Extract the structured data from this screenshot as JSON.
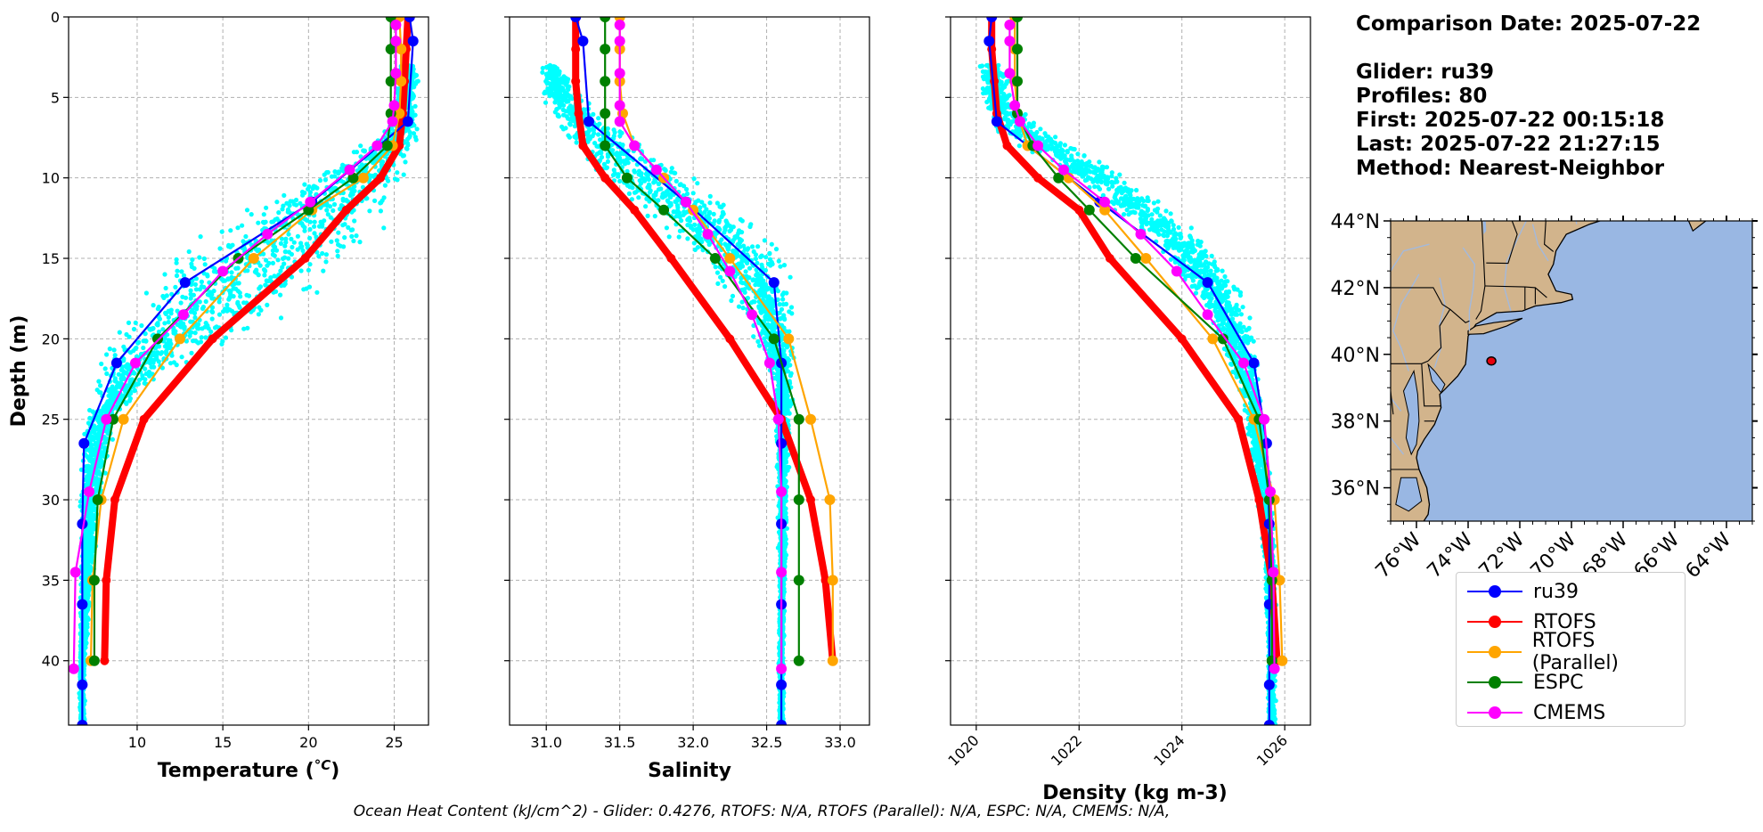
{
  "info": {
    "comparison_date": "Comparison Date: 2025-07-22",
    "glider": "Glider: ru39",
    "profiles": "Profiles: 80",
    "first": "First: 2025-07-22 00:15:18",
    "last": "Last: 2025-07-22 21:27:15",
    "method": "Method: Nearest-Neighbor"
  },
  "footer": "Ocean Heat Content (kJ/cm^2) - Glider: 0.4276,  RTOFS: N/A,  RTOFS (Parallel): N/A,  ESPC: N/A,  CMEMS: N/A,",
  "colors": {
    "ru39": "#0000ff",
    "RTOFS": "#ff0000",
    "RTOFS (Parallel)": "#ffa500",
    "ESPC": "#008000",
    "CMEMS": "#ff00ff",
    "scatter": "#00ffff",
    "land": "#d2b48c",
    "ocean": "#99b7e3"
  },
  "legend": [
    {
      "name": "ru39",
      "color": "#0000ff"
    },
    {
      "name": "RTOFS",
      "color": "#ff0000"
    },
    {
      "name": "RTOFS (Parallel)",
      "color": "#ffa500"
    },
    {
      "name": "ESPC",
      "color": "#008000"
    },
    {
      "name": "CMEMS",
      "color": "#ff00ff"
    }
  ],
  "chart_data": [
    {
      "type": "line",
      "xlabel": "Temperature (°C)",
      "ylabel": "Depth (m)",
      "xlim": [
        6,
        27
      ],
      "ylim": [
        44,
        0
      ],
      "xticks": [
        10,
        15,
        20,
        25
      ],
      "yticks": [
        0,
        5,
        10,
        15,
        20,
        25,
        30,
        35,
        40
      ],
      "grid": true,
      "scatter_envelope": {
        "name": "glider profiles",
        "depth": [
          3,
          5,
          7,
          9,
          11,
          13,
          15,
          17,
          19,
          21,
          23,
          25,
          30,
          35,
          40,
          44
        ],
        "min": [
          25.2,
          24.7,
          24.3,
          21,
          17,
          13.5,
          10.5,
          9,
          8.2,
          7.5,
          7,
          6.7,
          6.6,
          6.6,
          6.6,
          6.6
        ],
        "max": [
          26.5,
          26.6,
          26.6,
          26.5,
          26.4,
          25.8,
          23.5,
          21.5,
          18.5,
          14,
          11,
          9,
          8,
          7.5,
          7,
          7
        ]
      },
      "series": [
        {
          "name": "ru39",
          "depth": [
            0,
            1.5,
            6.5,
            11.5,
            16.5,
            21.5,
            26.5,
            31.5,
            36.5,
            41.5,
            44
          ],
          "values": [
            25.9,
            26.1,
            25.8,
            20.2,
            12.8,
            8.8,
            6.9,
            6.8,
            6.8,
            6.8,
            6.8
          ]
        },
        {
          "name": "RTOFS",
          "depth": [
            0,
            2,
            4,
            6,
            8,
            10,
            12,
            15,
            20,
            25,
            30,
            35,
            40
          ],
          "values": [
            25.8,
            25.7,
            25.6,
            25.5,
            25.3,
            24.2,
            22.2,
            19.8,
            14.4,
            10.4,
            8.7,
            8.2,
            8.1
          ]
        },
        {
          "name": "RTOFS (Parallel)",
          "depth": [
            0,
            2,
            4,
            6,
            8,
            10,
            12,
            15,
            20,
            25,
            30,
            35,
            40
          ],
          "values": [
            25.3,
            25.4,
            25.4,
            25.3,
            24.9,
            23.2,
            20.2,
            16.8,
            12.5,
            9.2,
            7.9,
            7.4,
            7.3
          ]
        },
        {
          "name": "ESPC",
          "depth": [
            0,
            2,
            4,
            6,
            8,
            10,
            12,
            15,
            20,
            25,
            30,
            35,
            40
          ],
          "values": [
            24.8,
            24.8,
            24.8,
            24.8,
            24.6,
            22.6,
            20.0,
            15.9,
            11.2,
            8.6,
            7.7,
            7.5,
            7.5
          ]
        },
        {
          "name": "CMEMS",
          "depth": [
            0.5,
            1.5,
            3.5,
            5.5,
            6.5,
            8,
            9.5,
            11.5,
            13.5,
            15.8,
            18.5,
            21.5,
            25,
            29.5,
            34.5,
            40.5
          ],
          "values": [
            25.1,
            25.1,
            25.1,
            25.0,
            24.9,
            24.0,
            22.4,
            20.1,
            17.6,
            15.0,
            12.7,
            9.9,
            8.2,
            7.2,
            6.4,
            6.3
          ]
        }
      ]
    },
    {
      "type": "line",
      "xlabel": "Salinity",
      "xlim": [
        30.75,
        33.2
      ],
      "ylim": [
        44,
        0
      ],
      "xticks": [
        31.0,
        31.5,
        32.0,
        32.5,
        33.0
      ],
      "grid": true,
      "scatter_envelope": {
        "name": "glider profiles",
        "depth": [
          3,
          5,
          7,
          9,
          11,
          13,
          15,
          17,
          19,
          21,
          23,
          25,
          30,
          35,
          40,
          44
        ],
        "min": [
          30.95,
          30.95,
          31.05,
          31.2,
          31.4,
          31.7,
          31.95,
          32.15,
          32.35,
          32.45,
          32.52,
          32.55,
          32.57,
          32.58,
          32.58,
          32.58
        ],
        "max": [
          31.1,
          31.25,
          31.55,
          31.9,
          32.2,
          32.5,
          32.7,
          32.72,
          32.72,
          32.72,
          32.7,
          32.68,
          32.65,
          32.63,
          32.62,
          32.62
        ]
      },
      "series": [
        {
          "name": "ru39",
          "depth": [
            0,
            1.5,
            6.5,
            11.5,
            16.5,
            21.5,
            26.5,
            31.5,
            36.5,
            41.5,
            44
          ],
          "values": [
            31.2,
            31.25,
            31.29,
            31.95,
            32.55,
            32.6,
            32.6,
            32.6,
            32.6,
            32.6,
            32.6
          ]
        },
        {
          "name": "RTOFS",
          "depth": [
            0,
            2,
            4,
            6,
            8,
            10,
            12,
            15,
            20,
            25,
            30,
            35,
            40
          ],
          "values": [
            31.2,
            31.2,
            31.2,
            31.22,
            31.25,
            31.4,
            31.6,
            31.85,
            32.25,
            32.6,
            32.8,
            32.9,
            32.95
          ]
        },
        {
          "name": "RTOFS (Parallel)",
          "depth": [
            0,
            2,
            4,
            6,
            8,
            10,
            12,
            15,
            20,
            25,
            30,
            35,
            40
          ],
          "values": [
            31.5,
            31.5,
            31.5,
            31.52,
            31.6,
            31.8,
            32.0,
            32.25,
            32.65,
            32.8,
            32.93,
            32.95,
            32.95
          ]
        },
        {
          "name": "ESPC",
          "depth": [
            0,
            2,
            4,
            6,
            8,
            10,
            12,
            15,
            20,
            25,
            30,
            35,
            40
          ],
          "values": [
            31.4,
            31.4,
            31.4,
            31.4,
            31.4,
            31.55,
            31.8,
            32.15,
            32.55,
            32.72,
            32.72,
            32.72,
            32.72
          ]
        },
        {
          "name": "CMEMS",
          "depth": [
            0.5,
            1.5,
            3.5,
            5.5,
            6.5,
            8,
            9.5,
            11.5,
            13.5,
            15.8,
            18.5,
            21.5,
            25,
            29.5,
            34.5,
            40.5
          ],
          "values": [
            31.5,
            31.5,
            31.5,
            31.5,
            31.5,
            31.6,
            31.75,
            31.95,
            32.1,
            32.25,
            32.4,
            32.52,
            32.58,
            32.6,
            32.6,
            32.6
          ]
        }
      ]
    },
    {
      "type": "line",
      "xlabel": "Density (kg m-3)",
      "xlim": [
        1019.5,
        1026.5
      ],
      "ylim": [
        44,
        0
      ],
      "xticks": [
        1020,
        1022,
        1024,
        1026
      ],
      "grid": true,
      "scatter_envelope": {
        "name": "glider profiles",
        "depth": [
          3,
          5,
          7,
          9,
          11,
          13,
          15,
          17,
          19,
          21,
          23,
          25,
          30,
          35,
          40,
          44
        ],
        "min": [
          1020.0,
          1020.0,
          1020.2,
          1021.2,
          1022.2,
          1022.9,
          1023.6,
          1024.1,
          1024.5,
          1024.8,
          1025.0,
          1025.2,
          1025.45,
          1025.6,
          1025.65,
          1025.65
        ],
        "max": [
          1020.6,
          1020.8,
          1021.4,
          1022.6,
          1023.5,
          1024.3,
          1024.8,
          1025.2,
          1025.4,
          1025.55,
          1025.6,
          1025.65,
          1025.8,
          1025.85,
          1025.85,
          1025.85
        ]
      },
      "series": [
        {
          "name": "ru39",
          "depth": [
            0,
            1.5,
            6.5,
            11.5,
            16.5,
            21.5,
            26.5,
            31.5,
            36.5,
            41.5,
            44
          ],
          "values": [
            1020.3,
            1020.25,
            1020.4,
            1022.4,
            1024.5,
            1025.4,
            1025.65,
            1025.7,
            1025.7,
            1025.7,
            1025.7
          ]
        },
        {
          "name": "RTOFS",
          "depth": [
            0,
            2,
            4,
            6,
            8,
            10,
            12,
            15,
            20,
            25,
            30,
            35,
            40
          ],
          "values": [
            1020.3,
            1020.3,
            1020.35,
            1020.4,
            1020.6,
            1021.2,
            1022.0,
            1022.6,
            1024.0,
            1025.1,
            1025.5,
            1025.75,
            1025.85
          ]
        },
        {
          "name": "RTOFS (Parallel)",
          "depth": [
            0,
            2,
            4,
            6,
            8,
            10,
            12,
            15,
            20,
            25,
            30,
            35,
            40
          ],
          "values": [
            1020.75,
            1020.75,
            1020.75,
            1020.8,
            1021.0,
            1021.8,
            1022.5,
            1023.3,
            1024.6,
            1025.4,
            1025.8,
            1025.9,
            1025.95
          ]
        },
        {
          "name": "ESPC",
          "depth": [
            0,
            2,
            4,
            6,
            8,
            10,
            12,
            15,
            20,
            25,
            30,
            35,
            40
          ],
          "values": [
            1020.8,
            1020.8,
            1020.8,
            1020.8,
            1021.1,
            1021.6,
            1022.2,
            1023.1,
            1024.8,
            1025.5,
            1025.7,
            1025.75,
            1025.75
          ]
        },
        {
          "name": "CMEMS",
          "depth": [
            0.5,
            1.5,
            3.5,
            5.5,
            6.5,
            8,
            9.5,
            11.5,
            13.5,
            15.8,
            18.5,
            21.5,
            25,
            29.5,
            34.5,
            40.5
          ],
          "values": [
            1020.65,
            1020.65,
            1020.65,
            1020.75,
            1020.85,
            1021.2,
            1021.7,
            1022.5,
            1023.2,
            1023.9,
            1024.5,
            1025.2,
            1025.6,
            1025.72,
            1025.78,
            1025.8
          ]
        }
      ]
    },
    {
      "type": "map",
      "lon_range": [
        -77,
        -63
      ],
      "lat_range": [
        35,
        44
      ],
      "xticks": [
        -76,
        -74,
        -72,
        -70,
        -68,
        -66,
        -64
      ],
      "xtick_labels": [
        "76°W",
        "74°W",
        "72°W",
        "70°W",
        "68°W",
        "66°W",
        "64°W"
      ],
      "yticks": [
        36,
        38,
        40,
        42,
        44
      ],
      "ytick_labels": [
        "36°N",
        "38°N",
        "40°N",
        "42°N",
        "44°N"
      ],
      "glider_position": [
        -73.1,
        39.8
      ]
    }
  ]
}
